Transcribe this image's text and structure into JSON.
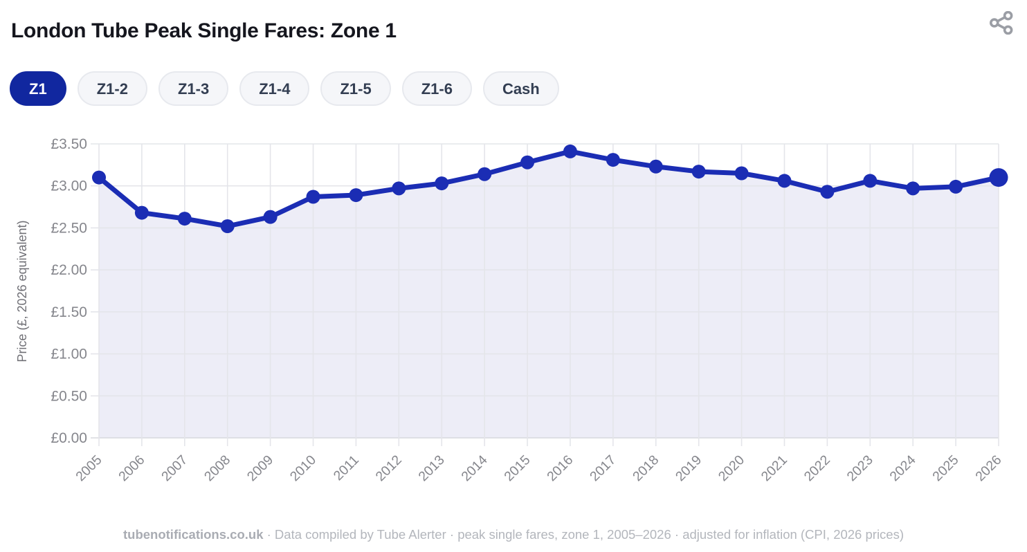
{
  "header": {
    "title": "London Tube Peak Single Fares: Zone 1"
  },
  "filters": {
    "items": [
      {
        "label": "Z1",
        "selected": true
      },
      {
        "label": "Z1-2",
        "selected": false
      },
      {
        "label": "Z1-3",
        "selected": false
      },
      {
        "label": "Z1-4",
        "selected": false
      },
      {
        "label": "Z1-5",
        "selected": false
      },
      {
        "label": "Z1-6",
        "selected": false
      },
      {
        "label": "Cash",
        "selected": false
      }
    ]
  },
  "chart_data": {
    "type": "line",
    "title": "London Tube Peak Single Fares: Zone 1",
    "x": [
      2005,
      2006,
      2007,
      2008,
      2009,
      2010,
      2011,
      2012,
      2013,
      2014,
      2015,
      2016,
      2017,
      2018,
      2019,
      2020,
      2021,
      2022,
      2023,
      2024,
      2025,
      2026
    ],
    "series": [
      {
        "name": "Z1 peak single fare (2026 prices)",
        "values": [
          3.1,
          2.68,
          2.61,
          2.52,
          2.63,
          2.87,
          2.89,
          2.97,
          3.03,
          3.14,
          3.28,
          3.41,
          3.31,
          3.23,
          3.17,
          3.15,
          3.06,
          2.93,
          3.06,
          2.97,
          2.99,
          3.1
        ]
      }
    ],
    "xlabel": "",
    "ylabel": "Price (£, 2026 equivalent)",
    "ylim": [
      0,
      3.5
    ],
    "ytick_step": 0.5,
    "ytick_labels": [
      "£0.00",
      "£0.50",
      "£1.00",
      "£1.50",
      "£2.00",
      "£2.50",
      "£3.00",
      "£3.50"
    ],
    "grid": true,
    "legend": "none",
    "marker_radius": 10,
    "last_marker_radius": 13.5,
    "area_fill": true
  },
  "footer": {
    "source": "tubenotifications.co.uk",
    "rest": " · Data compiled by Tube Alerter · peak single fares, zone 1, 2005–2026 · adjusted for inflation (CPI, 2026 prices)"
  },
  "colors": {
    "accent": "#11279f",
    "line": "#1b2db4",
    "area": "#ededf7",
    "grid": "#e4e5ea",
    "axis": "#d7d8de",
    "tick_text": "#85868c",
    "axis_title": "#707076",
    "icon_gray": "#9b9ea5",
    "selected_text": "#ffffff"
  }
}
